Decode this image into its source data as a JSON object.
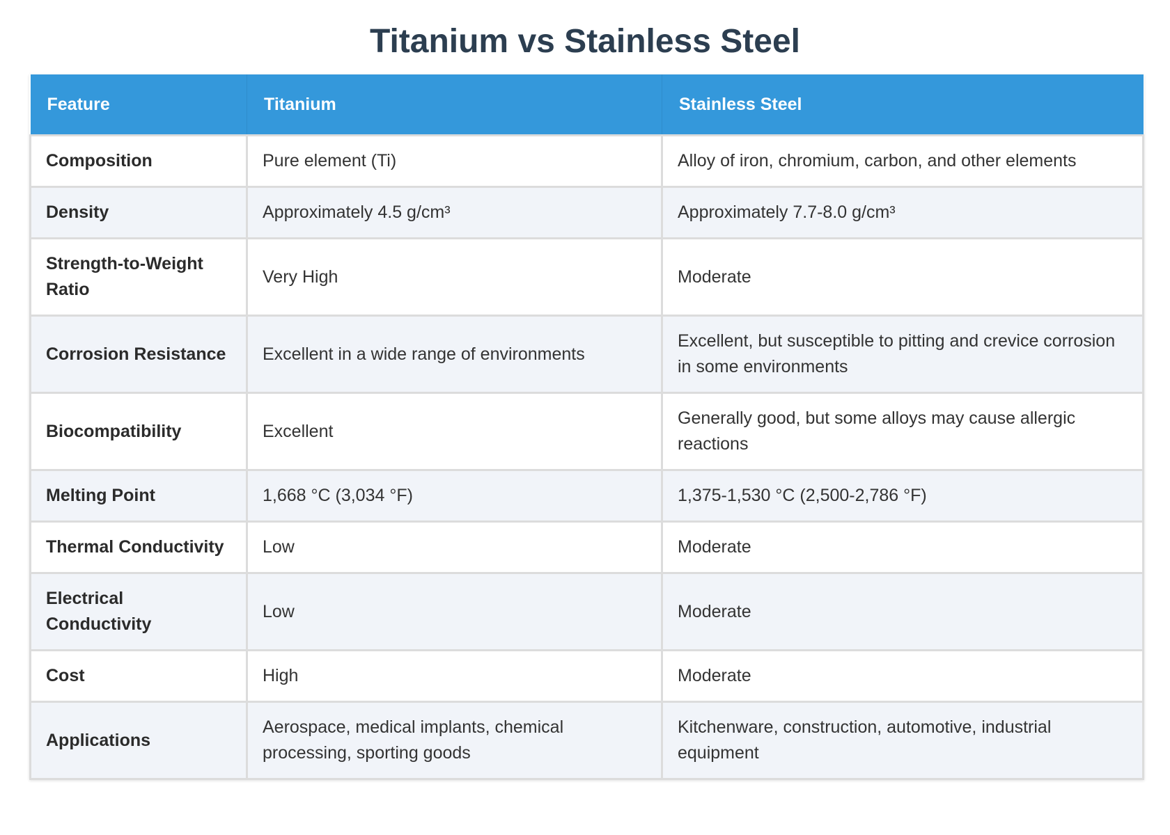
{
  "title": "Titanium vs Stainless Steel",
  "colors": {
    "header_bg": "#3498db",
    "title_text": "#2c3e50",
    "row_alt_bg": "#f1f4f9"
  },
  "table": {
    "headers": [
      "Feature",
      "Titanium",
      "Stainless Steel"
    ],
    "rows": [
      {
        "feature": "Composition",
        "titanium": "Pure element (Ti)",
        "steel": "Alloy of iron, chromium, carbon, and other elements"
      },
      {
        "feature": "Density",
        "titanium": "Approximately 4.5 g/cm³",
        "steel": "Approximately 7.7-8.0 g/cm³"
      },
      {
        "feature": "Strength-to-Weight Ratio",
        "titanium": "Very High",
        "steel": "Moderate"
      },
      {
        "feature": "Corrosion Resistance",
        "titanium": "Excellent in a wide range of environments",
        "steel": "Excellent, but susceptible to pitting and crevice corrosion in some environments"
      },
      {
        "feature": "Biocompatibility",
        "titanium": "Excellent",
        "steel": "Generally good, but some alloys may cause allergic reactions"
      },
      {
        "feature": "Melting Point",
        "titanium": "1,668 °C (3,034 °F)",
        "steel": "1,375-1,530 °C (2,500-2,786 °F)"
      },
      {
        "feature": "Thermal Conductivity",
        "titanium": "Low",
        "steel": "Moderate"
      },
      {
        "feature": "Electrical Conductivity",
        "titanium": "Low",
        "steel": "Moderate"
      },
      {
        "feature": "Cost",
        "titanium": "High",
        "steel": "Moderate"
      },
      {
        "feature": "Applications",
        "titanium": "Aerospace, medical implants, chemical processing, sporting goods",
        "steel": "Kitchenware, construction, automotive, industrial equipment"
      }
    ]
  }
}
